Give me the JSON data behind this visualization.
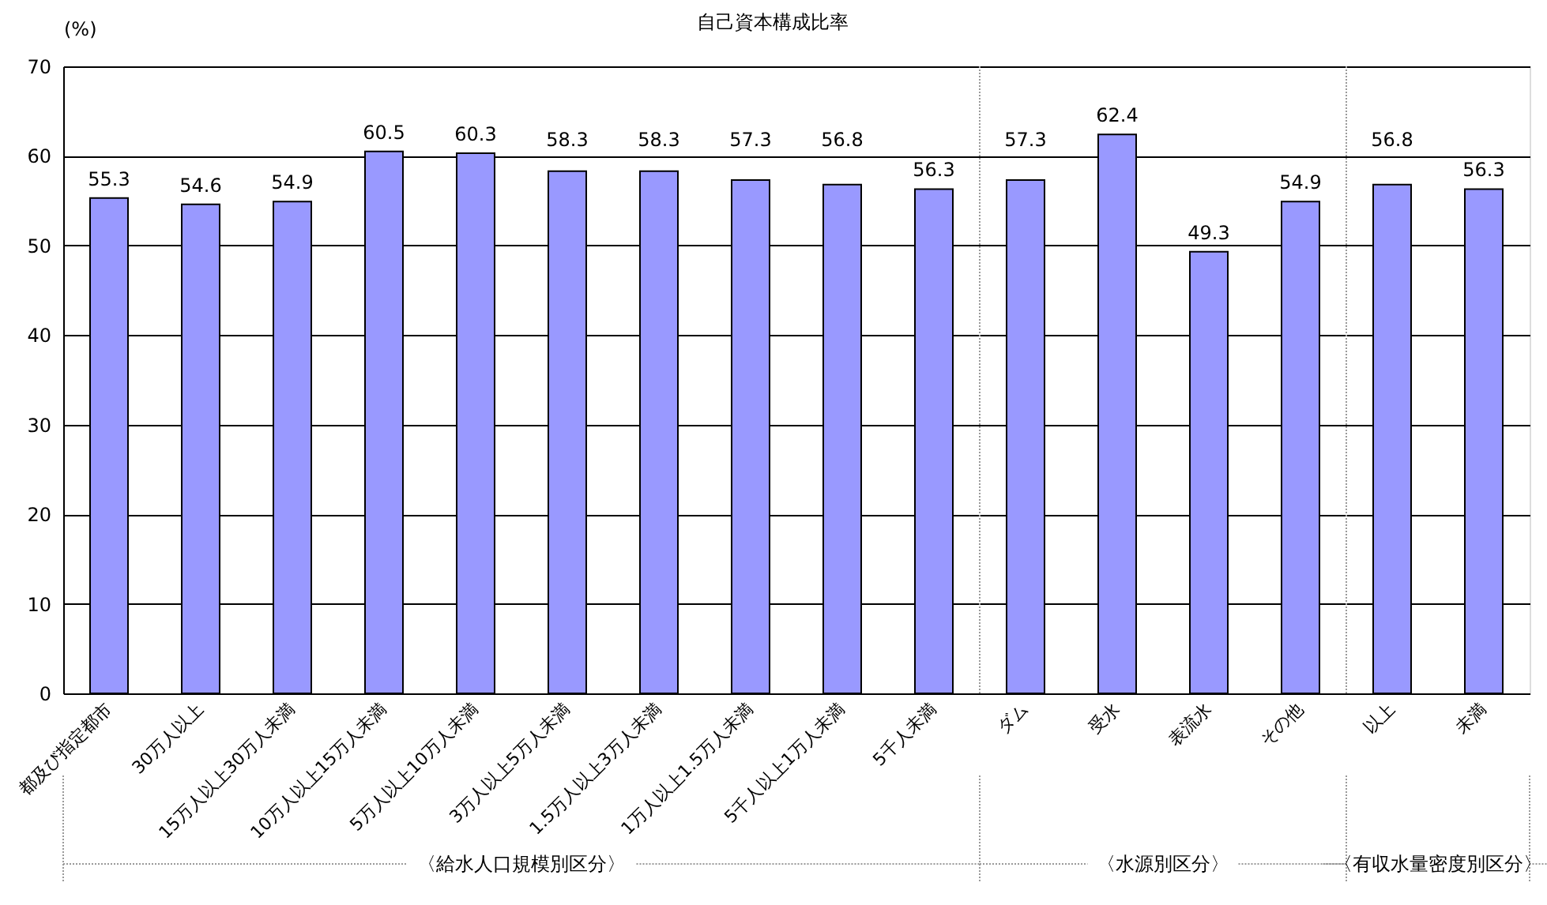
{
  "chart_data": {
    "type": "bar",
    "title": "自己資本構成比率",
    "ylabel": "(%)",
    "categories": [
      "都及び指定都市",
      "30万人以上",
      "15万人以上30万人未満",
      "10万人以上15万人未満",
      "5万人以上10万人未満",
      "3万人以上5万人未満",
      "1.5万人以上3万人未満",
      "1万人以上1.5万人未満",
      "5千人以上1万人未満",
      "5千人未満",
      "ダム",
      "受水",
      "表流水",
      "その他",
      "以上",
      "未満"
    ],
    "values": [
      55.3,
      54.6,
      54.9,
      60.5,
      60.3,
      58.3,
      58.3,
      57.3,
      56.8,
      56.3,
      57.3,
      62.4,
      49.3,
      54.9,
      56.8,
      56.3
    ],
    "color": "#9999ff",
    "ylim": [
      0,
      70
    ],
    "yticks": [
      0,
      10,
      20,
      30,
      40,
      50,
      60,
      70
    ],
    "grid": "y",
    "data_labels": true,
    "annotations": [
      "〈給水人口規模別区分〉",
      "〈水源別区分〉",
      "〈有収水量密度別区分〉"
    ]
  }
}
